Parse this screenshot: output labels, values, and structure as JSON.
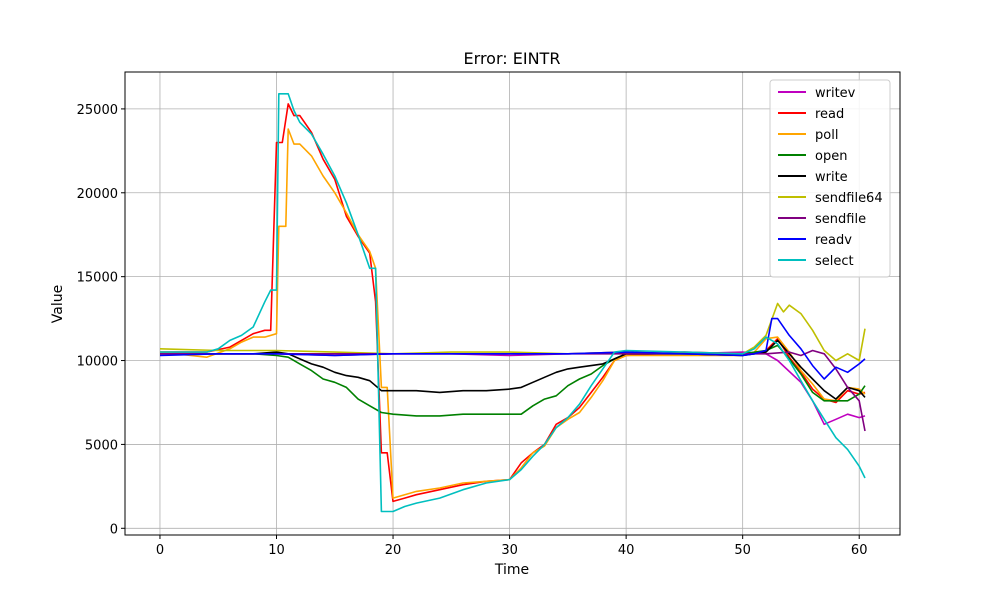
{
  "chart_data": {
    "type": "line",
    "title": "Error: EINTR",
    "xlabel": "Time",
    "ylabel": "Value",
    "xlim": [
      -3,
      63.5
    ],
    "ylim": [
      -400,
      27200
    ],
    "xticks": [
      0,
      10,
      20,
      30,
      40,
      50,
      60
    ],
    "yticks": [
      0,
      5000,
      10000,
      15000,
      20000,
      25000
    ],
    "grid": true,
    "legend_position": "top-right",
    "series": [
      {
        "name": "writev",
        "color": "#bf00bf",
        "points": [
          [
            0,
            10400
          ],
          [
            5,
            10400
          ],
          [
            10,
            10400
          ],
          [
            15,
            10300
          ],
          [
            20,
            10400
          ],
          [
            25,
            10400
          ],
          [
            30,
            10300
          ],
          [
            35,
            10400
          ],
          [
            40,
            10500
          ],
          [
            45,
            10400
          ],
          [
            50,
            10500
          ],
          [
            52,
            10400
          ],
          [
            53,
            10000
          ],
          [
            55,
            8700
          ],
          [
            56,
            7600
          ],
          [
            57,
            6200
          ],
          [
            58,
            6500
          ],
          [
            59,
            6800
          ],
          [
            60,
            6600
          ],
          [
            60.5,
            6700
          ]
        ]
      },
      {
        "name": "read",
        "color": "#ff0000",
        "points": [
          [
            0,
            10500
          ],
          [
            4,
            10500
          ],
          [
            6,
            10800
          ],
          [
            8,
            11600
          ],
          [
            9,
            11800
          ],
          [
            9.5,
            11800
          ],
          [
            10,
            23000
          ],
          [
            10.5,
            23000
          ],
          [
            11,
            25300
          ],
          [
            11.5,
            24600
          ],
          [
            12,
            24600
          ],
          [
            13,
            23600
          ],
          [
            14,
            22000
          ],
          [
            15,
            20800
          ],
          [
            16,
            18600
          ],
          [
            17,
            17400
          ],
          [
            18,
            16400
          ],
          [
            18.5,
            13500
          ],
          [
            19,
            4500
          ],
          [
            19.5,
            4500
          ],
          [
            20,
            1600
          ],
          [
            21,
            1800
          ],
          [
            22,
            2000
          ],
          [
            24,
            2300
          ],
          [
            26,
            2600
          ],
          [
            28,
            2800
          ],
          [
            30,
            2900
          ],
          [
            31,
            3900
          ],
          [
            32,
            4500
          ],
          [
            33,
            5000
          ],
          [
            34,
            6200
          ],
          [
            35,
            6600
          ],
          [
            36,
            7200
          ],
          [
            37,
            8100
          ],
          [
            38,
            9000
          ],
          [
            39,
            10000
          ],
          [
            40,
            10300
          ],
          [
            45,
            10500
          ],
          [
            50,
            10400
          ],
          [
            51,
            10400
          ],
          [
            52,
            10600
          ],
          [
            53,
            11300
          ],
          [
            54,
            10200
          ],
          [
            55,
            9300
          ],
          [
            56,
            8300
          ],
          [
            57,
            7700
          ],
          [
            58,
            7500
          ],
          [
            59,
            8200
          ],
          [
            60,
            8000
          ],
          [
            60.5,
            8100
          ]
        ]
      },
      {
        "name": "poll",
        "color": "#ffa500",
        "points": [
          [
            0,
            10500
          ],
          [
            4,
            10200
          ],
          [
            6,
            10700
          ],
          [
            7,
            11100
          ],
          [
            8,
            11400
          ],
          [
            9,
            11400
          ],
          [
            10,
            11600
          ],
          [
            10.2,
            18000
          ],
          [
            10.8,
            18000
          ],
          [
            11,
            23800
          ],
          [
            11.5,
            22900
          ],
          [
            12,
            22900
          ],
          [
            13,
            22200
          ],
          [
            14,
            21000
          ],
          [
            15,
            20000
          ],
          [
            16,
            18800
          ],
          [
            17,
            17500
          ],
          [
            18,
            16500
          ],
          [
            18.5,
            15500
          ],
          [
            19,
            8400
          ],
          [
            19.5,
            8400
          ],
          [
            20,
            1800
          ],
          [
            22,
            2200
          ],
          [
            24,
            2400
          ],
          [
            26,
            2700
          ],
          [
            28,
            2800
          ],
          [
            30,
            2900
          ],
          [
            31,
            3600
          ],
          [
            32,
            4500
          ],
          [
            33,
            4900
          ],
          [
            34,
            6000
          ],
          [
            35,
            6500
          ],
          [
            36,
            6900
          ],
          [
            37,
            7800
          ],
          [
            38,
            8800
          ],
          [
            39,
            10000
          ],
          [
            40,
            10300
          ],
          [
            45,
            10300
          ],
          [
            50,
            10300
          ],
          [
            51,
            10500
          ],
          [
            52,
            11300
          ],
          [
            53,
            11400
          ],
          [
            54,
            10500
          ],
          [
            55,
            9400
          ],
          [
            56,
            8600
          ],
          [
            57,
            7700
          ],
          [
            58,
            7600
          ],
          [
            59,
            8400
          ],
          [
            60,
            8300
          ],
          [
            60.5,
            8000
          ]
        ]
      },
      {
        "name": "open",
        "color": "#008000",
        "points": [
          [
            0,
            10400
          ],
          [
            8,
            10400
          ],
          [
            10,
            10300
          ],
          [
            11,
            10200
          ],
          [
            12,
            9800
          ],
          [
            13,
            9400
          ],
          [
            14,
            8900
          ],
          [
            15,
            8700
          ],
          [
            16,
            8400
          ],
          [
            17,
            7700
          ],
          [
            18,
            7300
          ],
          [
            19,
            6900
          ],
          [
            20,
            6800
          ],
          [
            22,
            6700
          ],
          [
            24,
            6700
          ],
          [
            26,
            6800
          ],
          [
            28,
            6800
          ],
          [
            30,
            6800
          ],
          [
            31,
            6800
          ],
          [
            32,
            7300
          ],
          [
            33,
            7700
          ],
          [
            34,
            7900
          ],
          [
            35,
            8500
          ],
          [
            36,
            8900
          ],
          [
            37,
            9200
          ],
          [
            38,
            9700
          ],
          [
            39,
            10100
          ],
          [
            40,
            10400
          ],
          [
            45,
            10400
          ],
          [
            50,
            10400
          ],
          [
            52,
            10600
          ],
          [
            53,
            10900
          ],
          [
            54,
            10100
          ],
          [
            55,
            9200
          ],
          [
            56,
            8100
          ],
          [
            57,
            7600
          ],
          [
            58,
            7600
          ],
          [
            59,
            7600
          ],
          [
            60,
            8000
          ],
          [
            60.5,
            8500
          ]
        ]
      },
      {
        "name": "write",
        "color": "#000000",
        "points": [
          [
            0,
            10400
          ],
          [
            8,
            10400
          ],
          [
            10,
            10500
          ],
          [
            11,
            10400
          ],
          [
            12,
            10100
          ],
          [
            13,
            9800
          ],
          [
            14,
            9600
          ],
          [
            15,
            9300
          ],
          [
            16,
            9100
          ],
          [
            17,
            9000
          ],
          [
            18,
            8800
          ],
          [
            19,
            8200
          ],
          [
            20,
            8200
          ],
          [
            22,
            8200
          ],
          [
            24,
            8100
          ],
          [
            26,
            8200
          ],
          [
            28,
            8200
          ],
          [
            30,
            8300
          ],
          [
            31,
            8400
          ],
          [
            32,
            8700
          ],
          [
            33,
            9000
          ],
          [
            34,
            9300
          ],
          [
            35,
            9500
          ],
          [
            36,
            9600
          ],
          [
            37,
            9700
          ],
          [
            38,
            9800
          ],
          [
            39,
            10100
          ],
          [
            40,
            10400
          ],
          [
            45,
            10400
          ],
          [
            50,
            10300
          ],
          [
            52,
            10500
          ],
          [
            53,
            11200
          ],
          [
            54,
            10400
          ],
          [
            55,
            9600
          ],
          [
            56,
            8900
          ],
          [
            57,
            8200
          ],
          [
            58,
            7700
          ],
          [
            59,
            8400
          ],
          [
            60,
            8200
          ],
          [
            60.5,
            7800
          ]
        ]
      },
      {
        "name": "sendfile64",
        "color": "#bfbf00",
        "points": [
          [
            0,
            10700
          ],
          [
            5,
            10600
          ],
          [
            10,
            10600
          ],
          [
            15,
            10500
          ],
          [
            20,
            10400
          ],
          [
            25,
            10500
          ],
          [
            30,
            10500
          ],
          [
            35,
            10400
          ],
          [
            40,
            10500
          ],
          [
            45,
            10400
          ],
          [
            50,
            10400
          ],
          [
            51,
            10800
          ],
          [
            52,
            11500
          ],
          [
            53,
            13400
          ],
          [
            53.5,
            12900
          ],
          [
            54,
            13300
          ],
          [
            55,
            12800
          ],
          [
            56,
            11800
          ],
          [
            57,
            10600
          ],
          [
            58,
            10000
          ],
          [
            59,
            10400
          ],
          [
            60,
            10000
          ],
          [
            60.5,
            11900
          ]
        ]
      },
      {
        "name": "sendfile",
        "color": "#800080",
        "points": [
          [
            0,
            10400
          ],
          [
            5,
            10400
          ],
          [
            10,
            10400
          ],
          [
            15,
            10400
          ],
          [
            20,
            10400
          ],
          [
            25,
            10400
          ],
          [
            30,
            10400
          ],
          [
            35,
            10400
          ],
          [
            40,
            10400
          ],
          [
            45,
            10400
          ],
          [
            50,
            10400
          ],
          [
            52,
            10400
          ],
          [
            54,
            10500
          ],
          [
            55,
            10300
          ],
          [
            56,
            10600
          ],
          [
            57,
            10400
          ],
          [
            58,
            9500
          ],
          [
            59,
            8400
          ],
          [
            60,
            7600
          ],
          [
            60.5,
            5800
          ]
        ]
      },
      {
        "name": "readv",
        "color": "#0000ff",
        "points": [
          [
            0,
            10300
          ],
          [
            5,
            10400
          ],
          [
            10,
            10400
          ],
          [
            15,
            10300
          ],
          [
            20,
            10400
          ],
          [
            25,
            10400
          ],
          [
            30,
            10400
          ],
          [
            35,
            10400
          ],
          [
            40,
            10500
          ],
          [
            45,
            10400
          ],
          [
            50,
            10300
          ],
          [
            51,
            10400
          ],
          [
            52,
            10600
          ],
          [
            52.5,
            12500
          ],
          [
            53,
            12500
          ],
          [
            54,
            11500
          ],
          [
            55,
            10700
          ],
          [
            56,
            9700
          ],
          [
            57,
            8900
          ],
          [
            58,
            9600
          ],
          [
            59,
            9300
          ],
          [
            60,
            9800
          ],
          [
            60.5,
            10100
          ]
        ]
      },
      {
        "name": "select",
        "color": "#00bfbf",
        "points": [
          [
            0,
            10500
          ],
          [
            4,
            10500
          ],
          [
            5,
            10700
          ],
          [
            6,
            11200
          ],
          [
            7,
            11500
          ],
          [
            8,
            12000
          ],
          [
            9,
            13500
          ],
          [
            9.5,
            14200
          ],
          [
            10,
            14200
          ],
          [
            10.2,
            25900
          ],
          [
            11,
            25900
          ],
          [
            11.5,
            24900
          ],
          [
            12,
            24200
          ],
          [
            13,
            23500
          ],
          [
            14,
            22300
          ],
          [
            15,
            21000
          ],
          [
            16,
            19400
          ],
          [
            17,
            17500
          ],
          [
            18,
            15500
          ],
          [
            18.5,
            15500
          ],
          [
            19,
            1000
          ],
          [
            20,
            1000
          ],
          [
            21,
            1300
          ],
          [
            22,
            1500
          ],
          [
            24,
            1800
          ],
          [
            26,
            2300
          ],
          [
            28,
            2700
          ],
          [
            30,
            2900
          ],
          [
            31,
            3500
          ],
          [
            32,
            4300
          ],
          [
            33,
            5000
          ],
          [
            34,
            6000
          ],
          [
            35,
            6600
          ],
          [
            36,
            7400
          ],
          [
            37,
            8500
          ],
          [
            38,
            9500
          ],
          [
            39,
            10500
          ],
          [
            40,
            10600
          ],
          [
            45,
            10500
          ],
          [
            50,
            10400
          ],
          [
            51,
            10700
          ],
          [
            52,
            11400
          ],
          [
            53,
            11000
          ],
          [
            54,
            10000
          ],
          [
            55,
            8800
          ],
          [
            56,
            7600
          ],
          [
            57,
            6500
          ],
          [
            58,
            5400
          ],
          [
            59,
            4700
          ],
          [
            60,
            3700
          ],
          [
            60.5,
            3000
          ]
        ]
      }
    ]
  }
}
